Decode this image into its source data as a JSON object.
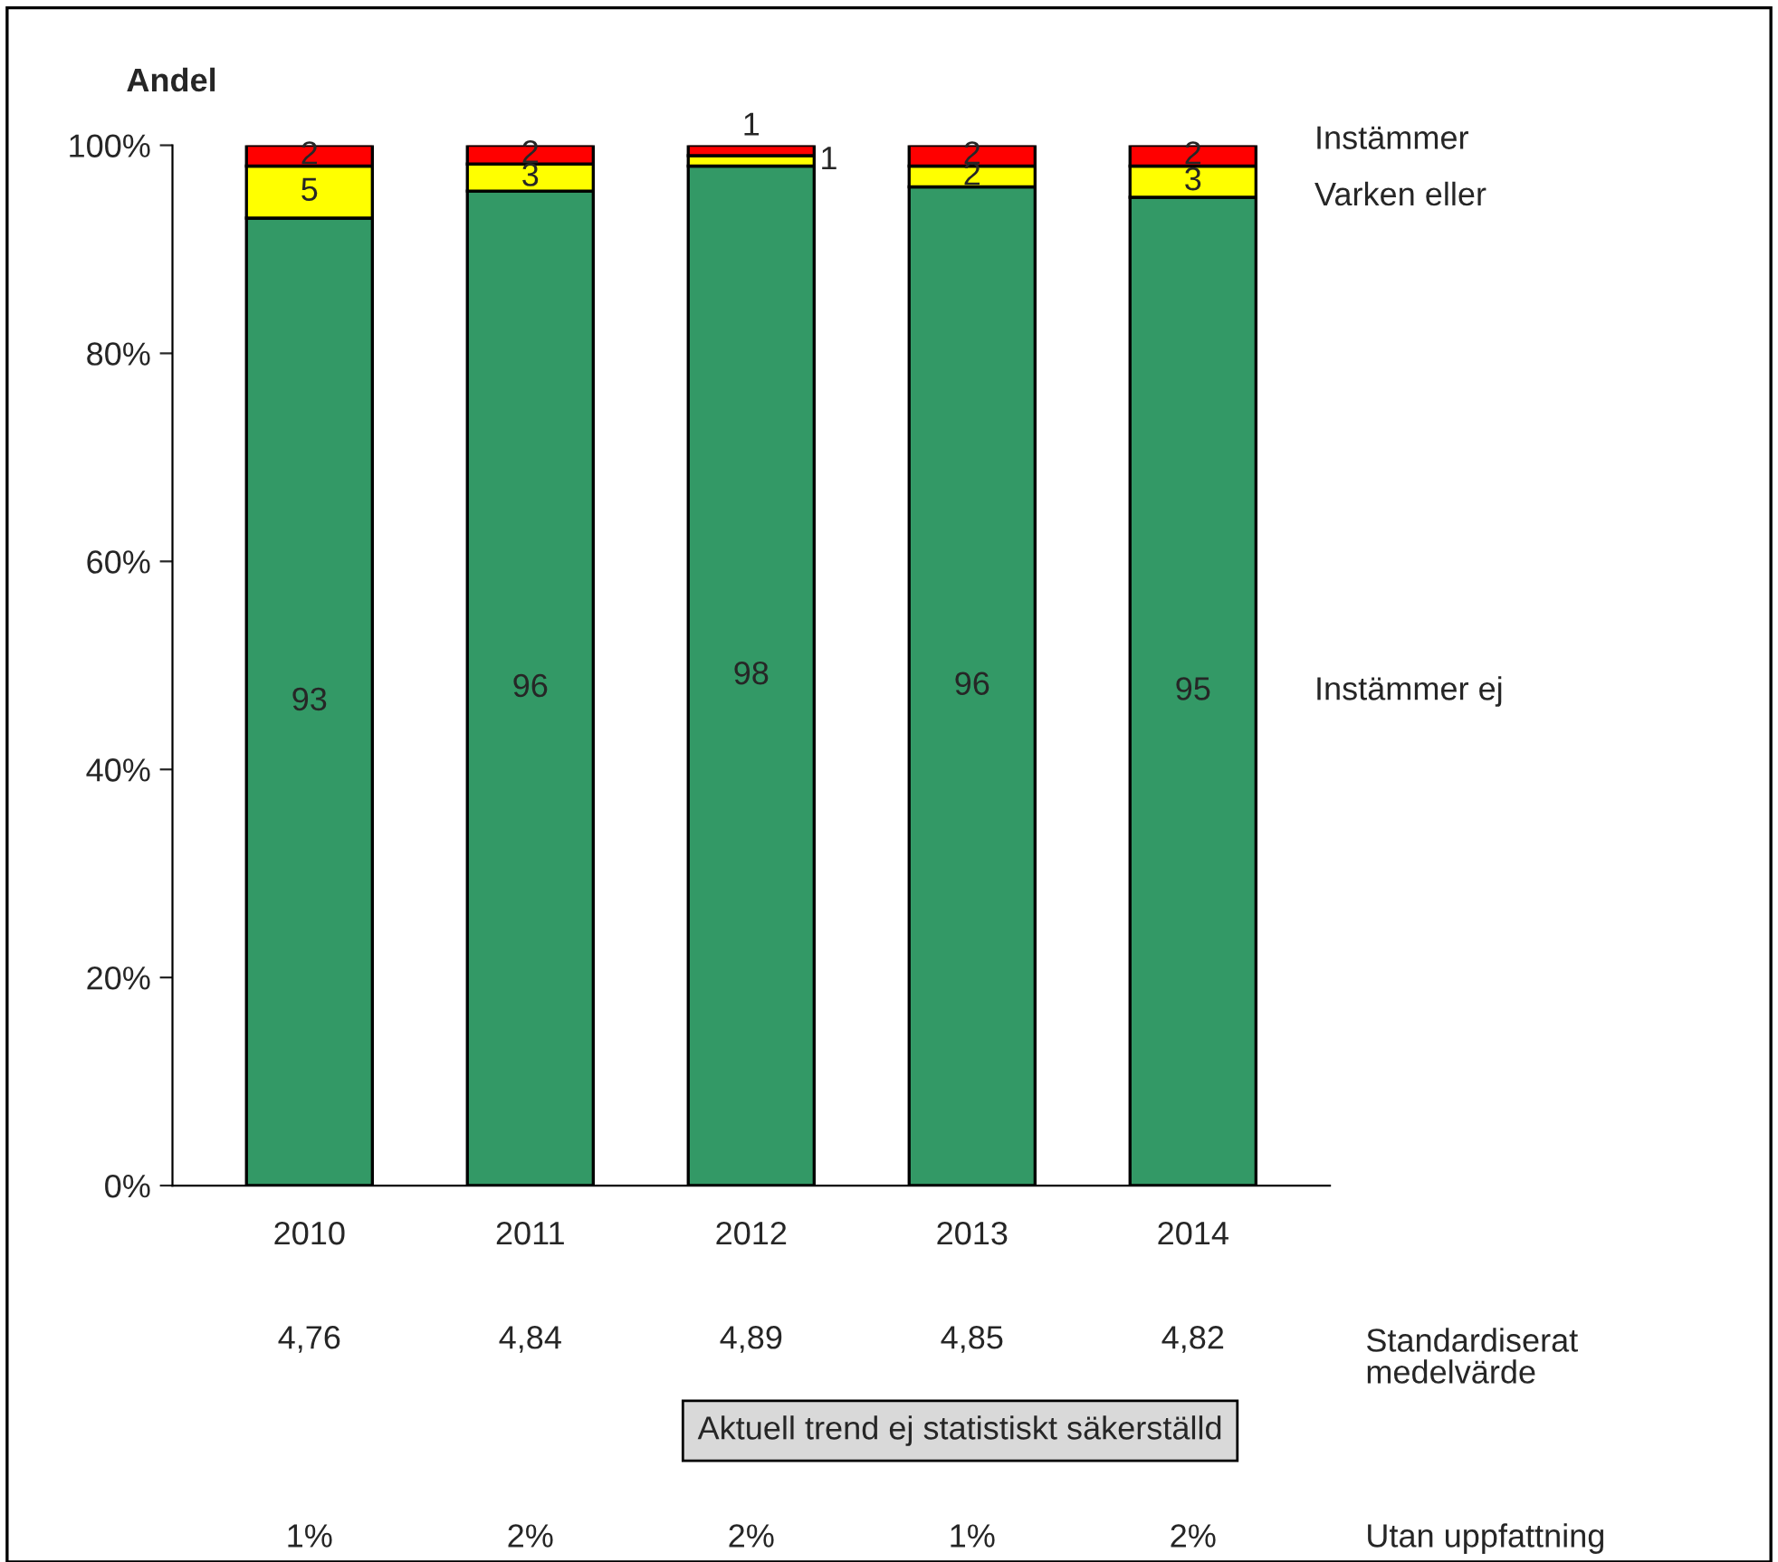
{
  "chart_data": {
    "type": "bar",
    "stacked": true,
    "ylabel": "Andel",
    "categories": [
      "2010",
      "2011",
      "2012",
      "2013",
      "2014"
    ],
    "series": [
      {
        "name": "Instämmer ej",
        "color": "#339966",
        "values": [
          93,
          95.6,
          98,
          96,
          95
        ],
        "value_labels": [
          "93",
          "96",
          "98",
          "96",
          "95"
        ]
      },
      {
        "name": "Varken eller",
        "color": "#ffff00",
        "values": [
          5,
          2.6,
          1,
          2,
          3
        ],
        "value_labels": [
          "5",
          "3",
          "1",
          "2",
          "3"
        ]
      },
      {
        "name": "Instämmer",
        "color": "#ff0000",
        "values": [
          2,
          1.8,
          1,
          2,
          2
        ],
        "value_labels": [
          "2",
          "2",
          "1",
          "2",
          "2"
        ]
      }
    ],
    "ylim": [
      0,
      100
    ],
    "yticks": [
      {
        "value": 0,
        "label": "0%"
      },
      {
        "value": 20,
        "label": "20%"
      },
      {
        "value": 40,
        "label": "40%"
      },
      {
        "value": 60,
        "label": "60%"
      },
      {
        "value": 80,
        "label": "80%"
      },
      {
        "value": 100,
        "label": "100%"
      }
    ],
    "grid": false,
    "legend": false,
    "annotations": [
      "4,76",
      "4,84",
      "4,89",
      "4,85",
      "4,82",
      "Standardiserat\nmedelvärde",
      "Aktuell trend ej statistiskt säkerställd",
      "1%",
      "2%",
      "2%",
      "1%",
      "2%",
      "Utan uppfattning"
    ]
  }
}
